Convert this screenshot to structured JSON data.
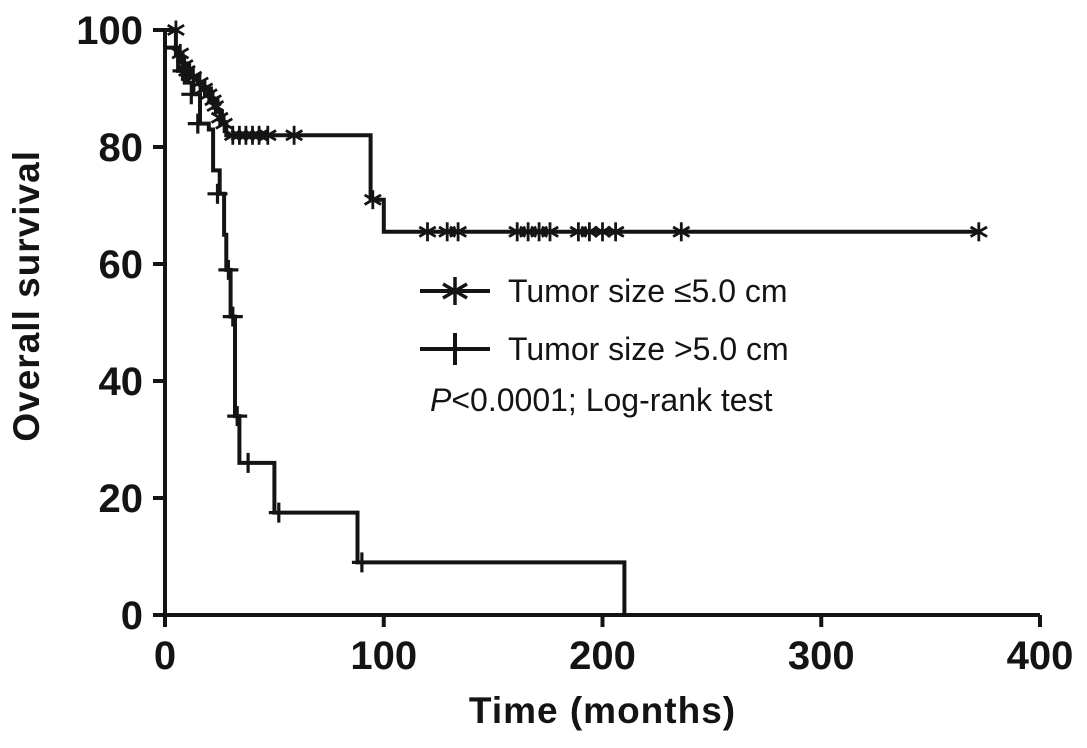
{
  "chart_data": {
    "type": "line",
    "subtype": "kaplan-meier-step",
    "title": "",
    "xlabel": "Time (months)",
    "ylabel": "Overall survival",
    "xlim": [
      0,
      400
    ],
    "ylim": [
      0,
      100
    ],
    "xticks": [
      0,
      100,
      200,
      300,
      400
    ],
    "yticks": [
      0,
      20,
      40,
      60,
      80,
      100
    ],
    "grid": false,
    "color": "#141414",
    "legend_position": "center",
    "series": [
      {
        "name": "Tumor size ≤5.0 cm",
        "marker": "asterisk",
        "steps": [
          [
            0,
            100
          ],
          [
            5,
            96
          ],
          [
            8,
            94
          ],
          [
            11,
            92
          ],
          [
            15,
            91
          ],
          [
            18,
            90
          ],
          [
            21,
            88
          ],
          [
            24,
            86
          ],
          [
            26,
            84
          ],
          [
            28,
            82
          ],
          [
            94,
            82
          ],
          [
            94,
            71
          ],
          [
            100,
            71
          ],
          [
            100,
            65.5
          ],
          [
            372,
            65.5
          ]
        ],
        "censor_marks": [
          [
            5,
            100
          ],
          [
            7,
            96
          ],
          [
            9,
            94
          ],
          [
            10,
            93
          ],
          [
            13,
            92
          ],
          [
            16,
            91
          ],
          [
            18,
            90
          ],
          [
            20,
            89
          ],
          [
            22,
            88
          ],
          [
            23,
            87
          ],
          [
            25,
            85
          ],
          [
            27,
            84
          ],
          [
            31,
            82
          ],
          [
            34,
            82
          ],
          [
            37,
            82
          ],
          [
            40,
            82
          ],
          [
            43,
            82
          ],
          [
            47,
            82
          ],
          [
            59,
            82
          ],
          [
            95,
            71
          ],
          [
            120,
            65.5
          ],
          [
            129,
            65.5
          ],
          [
            134,
            65.5
          ],
          [
            161,
            65.5
          ],
          [
            166,
            65.5
          ],
          [
            171,
            65.5
          ],
          [
            176,
            65.5
          ],
          [
            189,
            65.5
          ],
          [
            194,
            65.5
          ],
          [
            200,
            65.5
          ],
          [
            206,
            65.5
          ],
          [
            236,
            65.5
          ],
          [
            372,
            65.5
          ]
        ]
      },
      {
        "name": "Tumor size >5.0 cm",
        "marker": "plus",
        "steps": [
          [
            0,
            97
          ],
          [
            6,
            93
          ],
          [
            9,
            91
          ],
          [
            13,
            89
          ],
          [
            16,
            84
          ],
          [
            20,
            83
          ],
          [
            22,
            76
          ],
          [
            25,
            72
          ],
          [
            27,
            65
          ],
          [
            28,
            59
          ],
          [
            30,
            51
          ],
          [
            32,
            34
          ],
          [
            34,
            26
          ],
          [
            50,
            26
          ],
          [
            50,
            17.5
          ],
          [
            88,
            17.5
          ],
          [
            88,
            9
          ],
          [
            210,
            9
          ],
          [
            210,
            0
          ]
        ],
        "censor_marks": [
          [
            8,
            93
          ],
          [
            12,
            89
          ],
          [
            15,
            84
          ],
          [
            24,
            72
          ],
          [
            29,
            59
          ],
          [
            31,
            51
          ],
          [
            33,
            34
          ],
          [
            38,
            26
          ],
          [
            52,
            17.5
          ],
          [
            90,
            9
          ]
        ]
      }
    ],
    "annotation": {
      "p_label": "P",
      "text": "<0.0001; Log-rank test"
    }
  }
}
